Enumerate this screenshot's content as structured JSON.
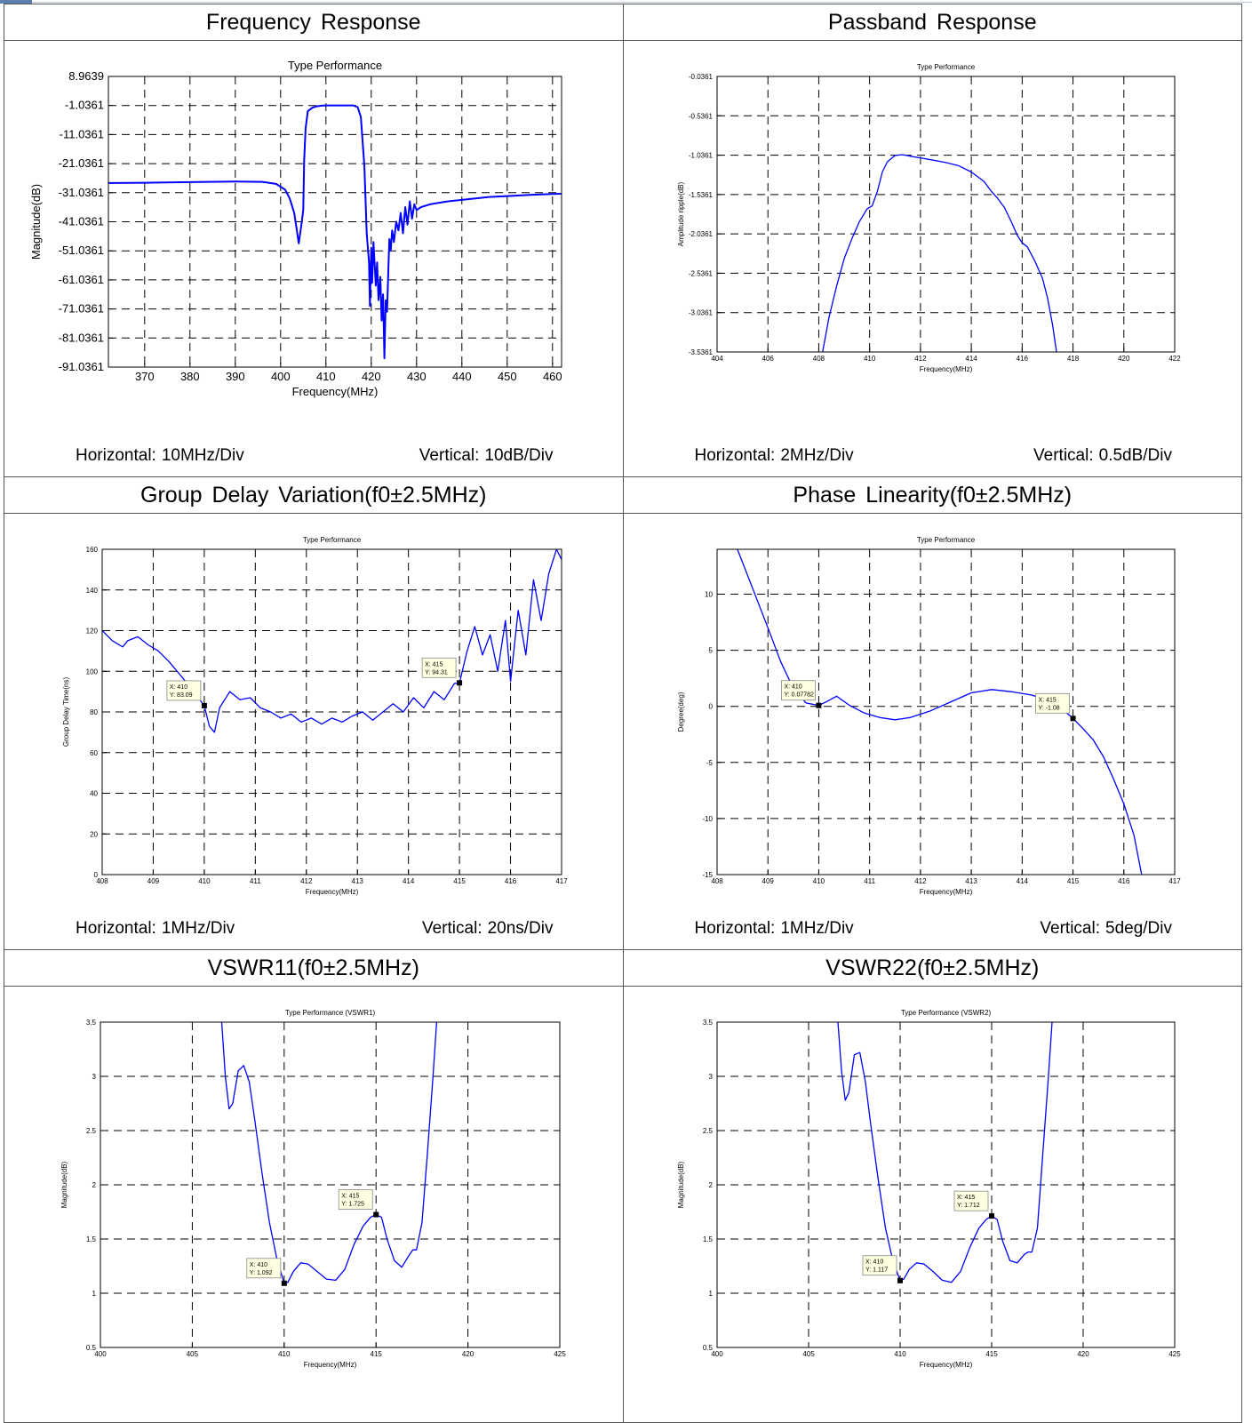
{
  "colors": {
    "trace": "#0000ff",
    "grid": "#000000",
    "marker_fill": "#ffffe1",
    "border": "#555555"
  },
  "chart_data": [
    {
      "id": "freq",
      "type": "line",
      "section_title": "Frequency Response",
      "title": "Type Performance",
      "xlabel": "Frequency(MHz)",
      "ylabel": "Magnitude(dB)",
      "xlim": [
        362,
        462
      ],
      "ylim": [
        -91.0361,
        8.9639
      ],
      "xticks": [
        370,
        380,
        390,
        400,
        410,
        420,
        430,
        440,
        450,
        460
      ],
      "xtick_labels": [
        "370",
        "380",
        "390",
        "400",
        "410",
        "420",
        "430",
        "440",
        "450",
        "460"
      ],
      "yticks": [
        8.9639,
        -1.0361,
        -11.0361,
        -21.0361,
        -31.0361,
        -41.0361,
        -51.0361,
        -61.0361,
        -71.0361,
        -81.0361,
        -91.0361
      ],
      "ytick_labels": [
        "8.9639",
        "-1.0361",
        "-11.0361",
        "-21.0361",
        "-31.0361",
        "-41.0361",
        "-51.0361",
        "-61.0361",
        "-71.0361",
        "-81.0361",
        "-91.0361"
      ],
      "grid": true,
      "series": [
        {
          "x": [
            362,
            370,
            380,
            390,
            396,
            399,
            401,
            402,
            403,
            403.5,
            404,
            404.5,
            405,
            405.2,
            405.5,
            406,
            407,
            408,
            409,
            410,
            412,
            414,
            416,
            417,
            417.7,
            418.5,
            419,
            419.5,
            419.7,
            420,
            420.2,
            420.5,
            420.8,
            421,
            421.3,
            421.6,
            422,
            422.3,
            422.6,
            422.9,
            423.2,
            423.5,
            423.8,
            424,
            424.3,
            424.6,
            425,
            425.5,
            426,
            426.5,
            427,
            427.5,
            428,
            428.5,
            429,
            429.5,
            430,
            431,
            432,
            433,
            435,
            437,
            440,
            443,
            446,
            450,
            455,
            460,
            462
          ],
          "y": [
            -27.7,
            -27.6,
            -27.4,
            -27.2,
            -27.3,
            -28,
            -30,
            -33,
            -38,
            -43,
            -48.5,
            -43,
            -37,
            -20,
            -9,
            -3,
            -1.8,
            -1.3,
            -1.1,
            -1.0,
            -1.0,
            -1.0,
            -1.0,
            -1.6,
            -5,
            -22,
            -45,
            -55,
            -70,
            -50,
            -62,
            -48,
            -57,
            -63,
            -55,
            -68,
            -60,
            -75,
            -66,
            -88,
            -68,
            -72,
            -56,
            -47,
            -51,
            -44,
            -48,
            -41,
            -44,
            -38,
            -45,
            -36,
            -42,
            -34,
            -40,
            -35,
            -37,
            -36,
            -35.5,
            -35,
            -34.5,
            -34,
            -33.5,
            -33,
            -32.5,
            -32.2,
            -31.8,
            -31.5,
            -31.4
          ]
        }
      ],
      "markers": [],
      "caption_h_label": "Horizontal:",
      "caption_h_value": "10MHz/Div",
      "caption_v_label": "Vertical:",
      "caption_v_value": "10dB/Div"
    },
    {
      "id": "passband",
      "type": "line",
      "section_title": "Passband Response",
      "title": "Type Performance",
      "xlabel": "Frequency(MHz)",
      "ylabel": "Amplitude ripple(dB)",
      "xlim": [
        404,
        422
      ],
      "ylim": [
        -3.5361,
        -0.0361
      ],
      "xticks": [
        404,
        406,
        408,
        410,
        412,
        414,
        416,
        418,
        420,
        422
      ],
      "xtick_labels": [
        "404",
        "406",
        "408",
        "410",
        "412",
        "414",
        "416",
        "418",
        "420",
        "422"
      ],
      "yticks": [
        -0.0361,
        -0.5361,
        -1.0361,
        -1.5361,
        -2.0361,
        -2.5361,
        -3.0361,
        -3.5361
      ],
      "ytick_labels": [
        "-0.0361",
        "-0.5361",
        "-1.0361",
        "-1.5361",
        "-2.0361",
        "-2.5361",
        "-3.0361",
        "-3.5361"
      ],
      "grid": true,
      "series": [
        {
          "x": [
            408.15,
            408.4,
            408.7,
            409.0,
            409.3,
            409.6,
            409.9,
            410.1,
            410.3,
            410.5,
            410.7,
            411.0,
            411.3,
            411.6,
            412.0,
            412.5,
            413.0,
            413.5,
            414.0,
            414.5,
            414.8,
            415.0,
            415.3,
            415.6,
            415.8,
            416.0,
            416.2,
            416.5,
            416.8,
            417.0,
            417.2,
            417.35
          ],
          "y": [
            -3.54,
            -3.1,
            -2.7,
            -2.35,
            -2.1,
            -1.88,
            -1.72,
            -1.68,
            -1.5,
            -1.25,
            -1.12,
            -1.04,
            -1.03,
            -1.05,
            -1.07,
            -1.1,
            -1.13,
            -1.17,
            -1.25,
            -1.37,
            -1.5,
            -1.57,
            -1.7,
            -1.9,
            -2.05,
            -2.15,
            -2.2,
            -2.38,
            -2.6,
            -2.85,
            -3.2,
            -3.54
          ]
        }
      ],
      "markers": [],
      "caption_h_label": "Horizontal:",
      "caption_h_value": "2MHz/Div",
      "caption_v_label": "Vertical:",
      "caption_v_value": "0.5dB/Div"
    },
    {
      "id": "gdelay",
      "type": "line",
      "section_title": "Group Delay Variation(f0±2.5MHz)",
      "title": "Type Performance",
      "xlabel": "Frequency(MHz)",
      "ylabel": "Group Delay Time(ns)",
      "xlim": [
        408,
        417
      ],
      "ylim": [
        0,
        160
      ],
      "xticks": [
        408,
        409,
        410,
        411,
        412,
        413,
        414,
        415,
        416,
        417
      ],
      "xtick_labels": [
        "408",
        "409",
        "410",
        "411",
        "412",
        "413",
        "414",
        "415",
        "416",
        "417"
      ],
      "yticks": [
        0,
        20,
        40,
        60,
        80,
        100,
        120,
        140,
        160
      ],
      "ytick_labels": [
        "0",
        "20",
        "40",
        "60",
        "80",
        "100",
        "120",
        "140",
        "160"
      ],
      "grid": true,
      "series": [
        {
          "x": [
            408.0,
            408.2,
            408.4,
            408.5,
            408.7,
            408.9,
            409.1,
            409.3,
            409.5,
            409.7,
            410.0,
            410.1,
            410.2,
            410.3,
            410.5,
            410.7,
            410.9,
            411.1,
            411.3,
            411.5,
            411.7,
            411.9,
            412.1,
            412.3,
            412.5,
            412.7,
            412.9,
            413.1,
            413.3,
            413.5,
            413.7,
            413.9,
            414.1,
            414.3,
            414.5,
            414.7,
            414.9,
            415.0,
            415.15,
            415.3,
            415.45,
            415.6,
            415.75,
            415.9,
            416.0,
            416.15,
            416.3,
            416.45,
            416.6,
            416.75,
            416.9,
            417.0
          ],
          "y": [
            120,
            115,
            112,
            115,
            117,
            113,
            110,
            105,
            99,
            93,
            83.09,
            73,
            70,
            82,
            90,
            86,
            87,
            82,
            80,
            77,
            79,
            75,
            77,
            74,
            77,
            75,
            78,
            80,
            76,
            80,
            84,
            80,
            87,
            82,
            90,
            86,
            94,
            94.31,
            110,
            122,
            108,
            118,
            100,
            125,
            95,
            130,
            108,
            145,
            125,
            148,
            160,
            155
          ]
        }
      ],
      "markers": [
        {
          "x": 410,
          "y": 83.09,
          "label_x": "X: 410",
          "label_y": "Y: 83.09"
        },
        {
          "x": 415,
          "y": 94.31,
          "label_x": "X: 415",
          "label_y": "Y: 94.31"
        }
      ],
      "caption_h_label": "Horizontal:",
      "caption_h_value": "1MHz/Div",
      "caption_v_label": "Vertical:",
      "caption_v_value": "20ns/Div"
    },
    {
      "id": "phase",
      "type": "line",
      "section_title": "Phase Linearity(f0±2.5MHz)",
      "title": "Type Performance",
      "xlabel": "Frequency(MHz)",
      "ylabel": "Degree(deg)",
      "xlim": [
        408,
        417
      ],
      "ylim": [
        -15,
        14
      ],
      "xticks": [
        408,
        409,
        410,
        411,
        412,
        413,
        414,
        415,
        416,
        417
      ],
      "xtick_labels": [
        "408",
        "409",
        "410",
        "411",
        "412",
        "413",
        "414",
        "415",
        "416",
        "417"
      ],
      "yticks": [
        -15,
        -10,
        -5,
        0,
        5,
        10
      ],
      "ytick_labels": [
        "-15",
        "-10",
        "-5",
        "0",
        "5",
        "10"
      ],
      "grid": true,
      "series": [
        {
          "x": [
            408.4,
            408.7,
            409.0,
            409.25,
            409.5,
            409.75,
            410.0,
            410.15,
            410.35,
            410.6,
            410.9,
            411.2,
            411.5,
            411.8,
            412.2,
            412.6,
            413.0,
            413.4,
            413.8,
            414.2,
            414.6,
            414.8,
            415.0,
            415.2,
            415.4,
            415.6,
            415.8,
            416.0,
            416.2,
            416.35
          ],
          "y": [
            14,
            10.5,
            7,
            4,
            1.6,
            0.3,
            0.08,
            0.4,
            0.9,
            0.1,
            -0.6,
            -1.0,
            -1.2,
            -1.0,
            -0.4,
            0.4,
            1.2,
            1.5,
            1.3,
            1.0,
            0.3,
            -0.3,
            -1.08,
            -2,
            -3,
            -4.5,
            -6.5,
            -8.7,
            -11.5,
            -15
          ]
        }
      ],
      "markers": [
        {
          "x": 410,
          "y": 0.07782,
          "label_x": "X: 410",
          "label_y": "Y: 0.07782"
        },
        {
          "x": 415,
          "y": -1.08,
          "label_x": "X: 415",
          "label_y": "Y: -1.08"
        }
      ],
      "caption_h_label": "Horizontal:",
      "caption_h_value": "1MHz/Div",
      "caption_v_label": "Vertical:",
      "caption_v_value": "5deg/Div"
    },
    {
      "id": "vswr11",
      "type": "line",
      "section_title": "VSWR11(f0±2.5MHz)",
      "title": "Type Performance (VSWR1)",
      "xlabel": "Frequency(MHz)",
      "ylabel": "Magnitude(dB)",
      "xlim": [
        400,
        425
      ],
      "ylim": [
        0.5,
        3.5
      ],
      "xticks": [
        400,
        405,
        410,
        415,
        420,
        425
      ],
      "xtick_labels": [
        "400",
        "405",
        "410",
        "415",
        "420",
        "425"
      ],
      "yticks": [
        0.5,
        1,
        1.5,
        2,
        2.5,
        3,
        3.5
      ],
      "ytick_labels": [
        "0.5",
        "1",
        "1.5",
        "2",
        "2.5",
        "3",
        "3.5"
      ],
      "grid": true,
      "series": [
        {
          "x": [
            406.6,
            406.8,
            407.0,
            407.2,
            407.5,
            407.8,
            408.1,
            408.4,
            408.8,
            409.2,
            409.6,
            410.0,
            410.2,
            410.5,
            410.9,
            411.3,
            411.8,
            412.3,
            412.8,
            413.3,
            413.8,
            414.3,
            414.7,
            415.0,
            415.3,
            415.6,
            416.0,
            416.4,
            416.8,
            417.0,
            417.2,
            417.5,
            417.8,
            418.1,
            418.3
          ],
          "y": [
            3.5,
            3.0,
            2.7,
            2.75,
            3.05,
            3.1,
            2.95,
            2.6,
            2.1,
            1.65,
            1.32,
            1.092,
            1.1,
            1.2,
            1.28,
            1.27,
            1.2,
            1.13,
            1.12,
            1.22,
            1.45,
            1.62,
            1.7,
            1.725,
            1.7,
            1.5,
            1.3,
            1.24,
            1.35,
            1.4,
            1.4,
            1.65,
            2.3,
            3.0,
            3.5
          ]
        }
      ],
      "markers": [
        {
          "x": 410,
          "y": 1.092,
          "label_x": "X: 410",
          "label_y": "Y: 1.092"
        },
        {
          "x": 415,
          "y": 1.725,
          "label_x": "X: 415",
          "label_y": "Y: 1.725"
        }
      ],
      "caption_h_label": "",
      "caption_h_value": "",
      "caption_v_label": "",
      "caption_v_value": ""
    },
    {
      "id": "vswr22",
      "type": "line",
      "section_title": "VSWR22(f0±2.5MHz)",
      "title": "Type Performance (VSWR2)",
      "xlabel": "Frequency(MHz)",
      "ylabel": "Magnitude(dB)",
      "xlim": [
        400,
        425
      ],
      "ylim": [
        0.5,
        3.5
      ],
      "xticks": [
        400,
        405,
        410,
        415,
        420,
        425
      ],
      "xtick_labels": [
        "400",
        "405",
        "410",
        "415",
        "420",
        "425"
      ],
      "yticks": [
        0.5,
        1,
        1.5,
        2,
        2.5,
        3,
        3.5
      ],
      "ytick_labels": [
        "0.5",
        "1",
        "1.5",
        "2",
        "2.5",
        "3",
        "3.5"
      ],
      "grid": true,
      "series": [
        {
          "x": [
            406.6,
            406.8,
            407.0,
            407.2,
            407.5,
            407.8,
            408.1,
            408.4,
            408.8,
            409.2,
            409.6,
            410.0,
            410.2,
            410.5,
            410.9,
            411.3,
            411.8,
            412.3,
            412.8,
            413.3,
            413.8,
            414.3,
            414.7,
            415.0,
            415.3,
            415.6,
            416.0,
            416.4,
            416.8,
            417.0,
            417.2,
            417.5,
            417.8,
            418.1,
            418.3
          ],
          "y": [
            3.5,
            3.05,
            2.78,
            2.85,
            3.2,
            3.22,
            2.95,
            2.55,
            2.05,
            1.6,
            1.3,
            1.117,
            1.13,
            1.22,
            1.28,
            1.27,
            1.2,
            1.12,
            1.1,
            1.2,
            1.42,
            1.6,
            1.68,
            1.712,
            1.68,
            1.48,
            1.3,
            1.28,
            1.36,
            1.38,
            1.38,
            1.6,
            2.3,
            3.0,
            3.5
          ]
        }
      ],
      "markers": [
        {
          "x": 410,
          "y": 1.117,
          "label_x": "X: 410",
          "label_y": "Y: 1.117"
        },
        {
          "x": 415,
          "y": 1.712,
          "label_x": "X: 415",
          "label_y": "Y: 1.712"
        }
      ],
      "caption_h_label": "",
      "caption_h_value": "",
      "caption_v_label": "",
      "caption_v_value": ""
    }
  ]
}
